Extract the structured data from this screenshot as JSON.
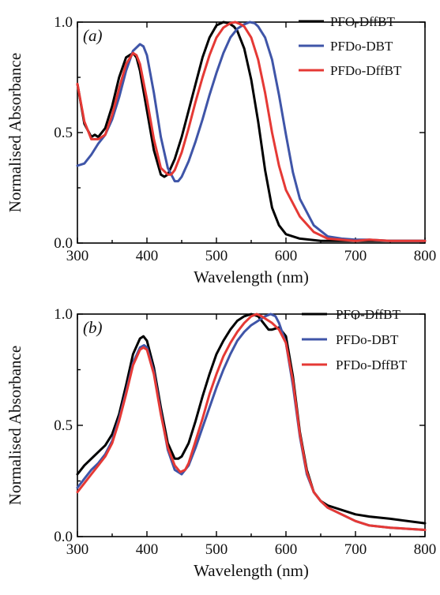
{
  "colors": {
    "black_series": "#000000",
    "blue_series": "#3f55a8",
    "red_series": "#e53935"
  },
  "chart_data": [
    {
      "type": "line",
      "panel_label": "(a)",
      "xlabel": "Wavelength (nm)",
      "ylabel": "Normalised Absorbance",
      "xlim": [
        300,
        800
      ],
      "ylim": [
        0.0,
        1.0
      ],
      "xticks": [
        "300",
        "400",
        "500",
        "600",
        "700",
        "800"
      ],
      "yticks": [
        "0.0",
        "0.5",
        "1.0"
      ],
      "grid": false,
      "legend_position": "top-right",
      "series": [
        {
          "name": "PFO-DffBT",
          "color": "#000000",
          "x": [
            300,
            310,
            320,
            325,
            330,
            340,
            350,
            360,
            370,
            380,
            385,
            390,
            400,
            410,
            420,
            425,
            430,
            440,
            450,
            460,
            470,
            480,
            490,
            500,
            510,
            518,
            525,
            530,
            540,
            550,
            560,
            570,
            580,
            590,
            600,
            620,
            650,
            700,
            720,
            750,
            800
          ],
          "y": [
            0.72,
            0.54,
            0.48,
            0.49,
            0.48,
            0.52,
            0.62,
            0.75,
            0.84,
            0.86,
            0.84,
            0.78,
            0.6,
            0.42,
            0.31,
            0.3,
            0.31,
            0.38,
            0.48,
            0.6,
            0.72,
            0.84,
            0.93,
            0.985,
            1.0,
            0.995,
            0.98,
            0.96,
            0.88,
            0.74,
            0.55,
            0.33,
            0.16,
            0.08,
            0.04,
            0.02,
            0.01,
            0.01,
            0.01,
            0.01,
            0.01
          ]
        },
        {
          "name": "PFDo-DBT",
          "color": "#3f55a8",
          "x": [
            300,
            310,
            320,
            330,
            340,
            350,
            360,
            370,
            380,
            390,
            395,
            400,
            410,
            420,
            430,
            440,
            445,
            450,
            460,
            470,
            480,
            490,
            500,
            510,
            520,
            530,
            540,
            548,
            555,
            560,
            570,
            580,
            590,
            600,
            610,
            620,
            640,
            660,
            680,
            700,
            720,
            750,
            800
          ],
          "y": [
            0.35,
            0.36,
            0.4,
            0.45,
            0.49,
            0.56,
            0.66,
            0.78,
            0.87,
            0.9,
            0.89,
            0.85,
            0.68,
            0.48,
            0.34,
            0.28,
            0.28,
            0.3,
            0.37,
            0.46,
            0.56,
            0.67,
            0.77,
            0.86,
            0.93,
            0.97,
            0.99,
            1.0,
            0.995,
            0.98,
            0.93,
            0.83,
            0.67,
            0.49,
            0.32,
            0.2,
            0.08,
            0.03,
            0.02,
            0.015,
            0.015,
            0.01,
            0.01
          ]
        },
        {
          "name": "PFDo-DffBT",
          "color": "#e53935",
          "x": [
            300,
            310,
            320,
            330,
            340,
            350,
            360,
            370,
            380,
            385,
            390,
            400,
            410,
            420,
            430,
            435,
            440,
            450,
            460,
            470,
            480,
            490,
            500,
            510,
            520,
            527,
            535,
            540,
            550,
            560,
            570,
            580,
            590,
            600,
            620,
            640,
            660,
            700,
            720,
            750,
            800
          ],
          "y": [
            0.72,
            0.55,
            0.47,
            0.47,
            0.49,
            0.58,
            0.7,
            0.81,
            0.86,
            0.85,
            0.81,
            0.65,
            0.47,
            0.34,
            0.31,
            0.31,
            0.33,
            0.41,
            0.52,
            0.64,
            0.75,
            0.85,
            0.93,
            0.975,
            0.995,
            1.0,
            0.99,
            0.98,
            0.93,
            0.83,
            0.68,
            0.5,
            0.35,
            0.24,
            0.12,
            0.05,
            0.02,
            0.01,
            0.015,
            0.01,
            0.01
          ]
        }
      ]
    },
    {
      "type": "line",
      "panel_label": "(b)",
      "xlabel": "Wavelength (nm)",
      "ylabel": "Normalised Absorbance",
      "xlim": [
        300,
        800
      ],
      "ylim": [
        0.0,
        1.0
      ],
      "xticks": [
        "300",
        "400",
        "500",
        "600",
        "700",
        "800"
      ],
      "yticks": [
        "0.0",
        "0.5",
        "1.0"
      ],
      "grid": false,
      "legend_position": "top-right",
      "series": [
        {
          "name": "PFO-DffBT",
          "color": "#000000",
          "x": [
            300,
            310,
            320,
            330,
            340,
            350,
            360,
            370,
            380,
            390,
            395,
            400,
            410,
            420,
            430,
            440,
            445,
            450,
            460,
            470,
            480,
            490,
            500,
            510,
            520,
            530,
            540,
            550,
            560,
            570,
            575,
            580,
            590,
            600,
            610,
            620,
            630,
            640,
            650,
            660,
            680,
            700,
            720,
            750,
            800
          ],
          "y": [
            0.28,
            0.32,
            0.35,
            0.38,
            0.41,
            0.46,
            0.55,
            0.68,
            0.82,
            0.89,
            0.9,
            0.88,
            0.76,
            0.58,
            0.42,
            0.35,
            0.35,
            0.36,
            0.42,
            0.52,
            0.63,
            0.73,
            0.82,
            0.88,
            0.93,
            0.97,
            0.99,
            1.0,
            0.99,
            0.95,
            0.93,
            0.93,
            0.94,
            0.9,
            0.72,
            0.47,
            0.3,
            0.2,
            0.16,
            0.14,
            0.12,
            0.1,
            0.09,
            0.08,
            0.06
          ]
        },
        {
          "name": "PFDo-DBT",
          "color": "#3f55a8",
          "x": [
            300,
            310,
            320,
            330,
            340,
            350,
            360,
            370,
            380,
            390,
            396,
            400,
            410,
            420,
            430,
            440,
            450,
            460,
            470,
            480,
            490,
            500,
            510,
            520,
            530,
            540,
            550,
            560,
            570,
            578,
            585,
            590,
            600,
            610,
            620,
            630,
            640,
            650,
            660,
            680,
            700,
            720,
            750,
            800
          ],
          "y": [
            0.22,
            0.26,
            0.3,
            0.33,
            0.37,
            0.43,
            0.53,
            0.65,
            0.78,
            0.85,
            0.86,
            0.85,
            0.74,
            0.56,
            0.39,
            0.3,
            0.28,
            0.32,
            0.4,
            0.49,
            0.58,
            0.67,
            0.75,
            0.82,
            0.88,
            0.92,
            0.95,
            0.97,
            0.99,
            1.0,
            0.99,
            0.96,
            0.87,
            0.68,
            0.45,
            0.28,
            0.2,
            0.16,
            0.13,
            0.1,
            0.07,
            0.05,
            0.04,
            0.03
          ]
        },
        {
          "name": "PFDo-DffBT",
          "color": "#e53935",
          "x": [
            300,
            310,
            320,
            330,
            340,
            350,
            360,
            370,
            380,
            390,
            395,
            400,
            410,
            420,
            430,
            440,
            448,
            455,
            460,
            470,
            480,
            490,
            500,
            510,
            520,
            530,
            540,
            550,
            558,
            565,
            570,
            580,
            590,
            600,
            610,
            620,
            630,
            640,
            650,
            660,
            680,
            700,
            720,
            750,
            800
          ],
          "y": [
            0.2,
            0.24,
            0.28,
            0.32,
            0.36,
            0.42,
            0.52,
            0.64,
            0.77,
            0.84,
            0.85,
            0.84,
            0.73,
            0.55,
            0.4,
            0.32,
            0.29,
            0.3,
            0.33,
            0.43,
            0.53,
            0.64,
            0.73,
            0.81,
            0.87,
            0.92,
            0.96,
            0.99,
            1.0,
            0.99,
            0.98,
            0.96,
            0.93,
            0.87,
            0.7,
            0.46,
            0.29,
            0.2,
            0.16,
            0.13,
            0.1,
            0.07,
            0.05,
            0.04,
            0.03
          ]
        }
      ]
    }
  ]
}
